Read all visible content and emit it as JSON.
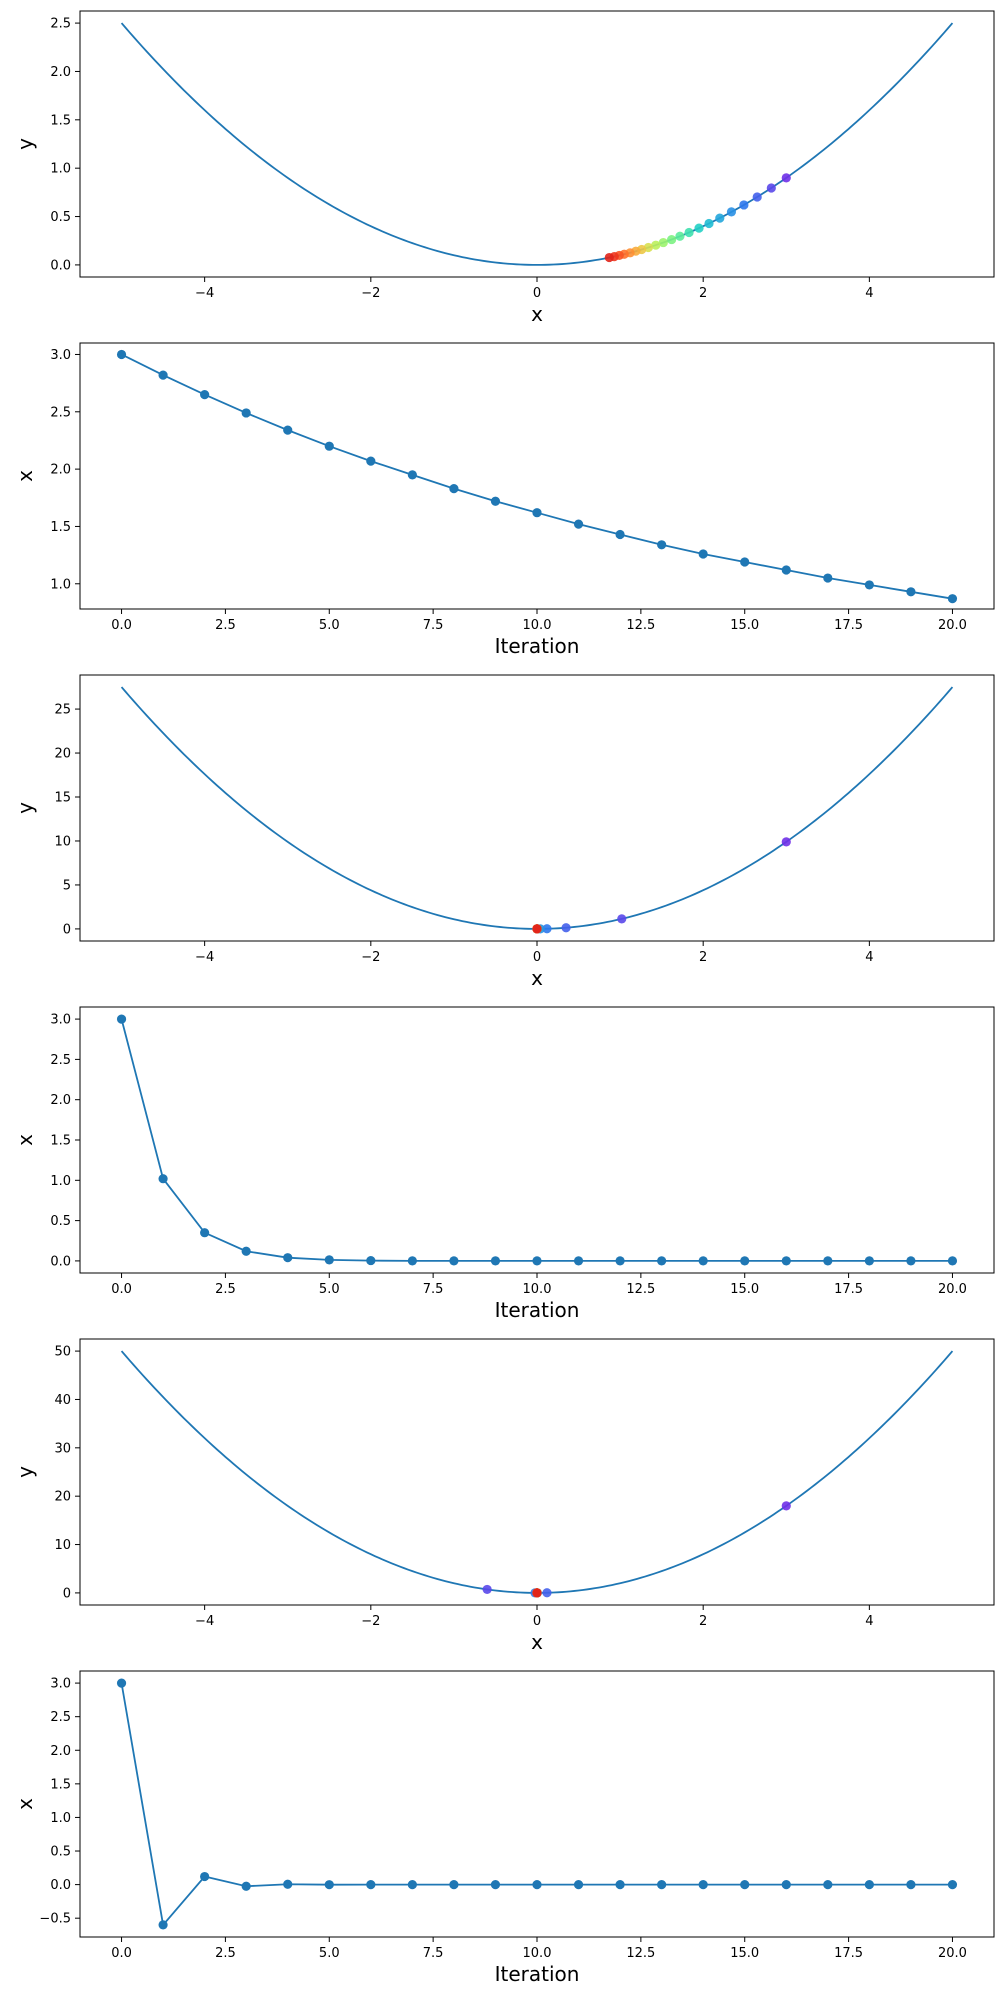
{
  "chart_data": [
    {
      "type": "line",
      "title": "",
      "xlabel": "x",
      "ylabel": "y",
      "xlim": [
        -5.5,
        5.5
      ],
      "ylim": [
        -0.125,
        2.625
      ],
      "xticks": [
        -4,
        -2,
        0,
        2,
        4
      ],
      "xtick_labels": [
        "−4",
        "−2",
        "0",
        "2",
        "4"
      ],
      "yticks": [
        0.0,
        0.5,
        1.0,
        1.5,
        2.0,
        2.5
      ],
      "ytick_labels": [
        "0.0",
        "0.5",
        "1.0",
        "1.5",
        "2.0",
        "2.5"
      ],
      "curve": {
        "x": [
          -5,
          -4.5,
          -4,
          -3.5,
          -3,
          -2.5,
          -2,
          -1.5,
          -1,
          -0.5,
          0,
          0.5,
          1,
          1.5,
          2,
          2.5,
          3,
          3.5,
          4,
          4.5,
          5
        ],
        "y": [
          2.5,
          2.025,
          1.6,
          1.225,
          0.9,
          0.625,
          0.4,
          0.225,
          0.1,
          0.025,
          0,
          0.025,
          0.1,
          0.225,
          0.4,
          0.625,
          0.9,
          1.225,
          1.6,
          2.025,
          2.5
        ]
      },
      "points": {
        "x": [
          3.0,
          2.82,
          2.65,
          2.49,
          2.34,
          2.2,
          2.07,
          1.95,
          1.83,
          1.72,
          1.62,
          1.52,
          1.43,
          1.34,
          1.26,
          1.19,
          1.12,
          1.05,
          0.99,
          0.93,
          0.87
        ],
        "y": [
          0.9,
          0.795,
          0.702,
          0.62,
          0.548,
          0.484,
          0.428,
          0.38,
          0.335,
          0.296,
          0.262,
          0.231,
          0.204,
          0.18,
          0.159,
          0.142,
          0.125,
          0.11,
          0.098,
          0.086,
          0.076
        ],
        "colors": [
          "#7030e8",
          "#5a48ea",
          "#4460eb",
          "#2e78ec",
          "#2990e4",
          "#24a6dc",
          "#20bcd3",
          "#22d0c4",
          "#3ee0ae",
          "#5cec9a",
          "#7cf283",
          "#9cf46e",
          "#bcf05c",
          "#d8e050",
          "#ecc846",
          "#f8ac3c",
          "#fd8f33",
          "#ff722b",
          "#f85424",
          "#ee361e",
          "#e0241a"
        ]
      },
      "grid": false,
      "legend": "none"
    },
    {
      "type": "line",
      "title": "",
      "xlabel": "Iteration",
      "ylabel": "x",
      "xlim": [
        -1.0,
        21.0
      ],
      "ylim": [
        0.78,
        3.1
      ],
      "xticks": [
        0,
        2.5,
        5,
        7.5,
        10,
        12.5,
        15,
        17.5,
        20
      ],
      "xtick_labels": [
        "0.0",
        "2.5",
        "5.0",
        "7.5",
        "10.0",
        "12.5",
        "15.0",
        "17.5",
        "20.0"
      ],
      "yticks": [
        1.0,
        1.5,
        2.0,
        2.5,
        3.0
      ],
      "ytick_labels": [
        "1.0",
        "1.5",
        "2.0",
        "2.5",
        "3.0"
      ],
      "series": [
        {
          "x": [
            0,
            1,
            2,
            3,
            4,
            5,
            6,
            7,
            8,
            9,
            10,
            11,
            12,
            13,
            14,
            15,
            16,
            17,
            18,
            19,
            20
          ],
          "values": [
            3.0,
            2.82,
            2.65,
            2.49,
            2.34,
            2.2,
            2.07,
            1.95,
            1.83,
            1.72,
            1.62,
            1.52,
            1.43,
            1.34,
            1.26,
            1.19,
            1.12,
            1.05,
            0.99,
            0.93,
            0.87
          ]
        }
      ],
      "grid": false,
      "legend": "none"
    },
    {
      "type": "line",
      "title": "",
      "xlabel": "x",
      "ylabel": "y",
      "xlim": [
        -5.5,
        5.5
      ],
      "ylim": [
        -1.375,
        28.875
      ],
      "xticks": [
        -4,
        -2,
        0,
        2,
        4
      ],
      "xtick_labels": [
        "−4",
        "−2",
        "0",
        "2",
        "4"
      ],
      "yticks": [
        0,
        5,
        10,
        15,
        20,
        25
      ],
      "ytick_labels": [
        "0",
        "5",
        "10",
        "15",
        "20",
        "25"
      ],
      "curve": {
        "x": [
          -5,
          -4.5,
          -4,
          -3.5,
          -3,
          -2.5,
          -2,
          -1.5,
          -1,
          -0.5,
          0,
          0.5,
          1,
          1.5,
          2,
          2.5,
          3,
          3.5,
          4,
          4.5,
          5
        ],
        "y": [
          27.5,
          22.275,
          17.6,
          13.475,
          9.9,
          6.875,
          4.4,
          2.475,
          1.1,
          0.275,
          0,
          0.275,
          1.1,
          2.475,
          4.4,
          6.875,
          9.9,
          13.475,
          17.6,
          22.275,
          27.5
        ]
      },
      "points": {
        "x": [
          3.0,
          1.02,
          0.35,
          0.12,
          0.04,
          0.013,
          0.004,
          0.0,
          0.0,
          0.0,
          0.0,
          0.0,
          0.0,
          0.0,
          0.0,
          0.0,
          0.0,
          0.0,
          0.0,
          0.0,
          0.0
        ],
        "y": [
          9.9,
          1.14,
          0.135,
          0.016,
          0.002,
          0.0,
          0.0,
          0.0,
          0.0,
          0.0,
          0.0,
          0.0,
          0.0,
          0.0,
          0.0,
          0.0,
          0.0,
          0.0,
          0.0,
          0.0,
          0.0
        ],
        "colors": [
          "#7030e8",
          "#5a48ea",
          "#4460eb",
          "#2e78ec",
          "#2990e4",
          "#24a6dc",
          "#20bcd3",
          "#22d0c4",
          "#3ee0ae",
          "#5cec9a",
          "#7cf283",
          "#9cf46e",
          "#bcf05c",
          "#d8e050",
          "#ecc846",
          "#f8ac3c",
          "#fd8f33",
          "#ff722b",
          "#f85424",
          "#ee361e",
          "#e0241a"
        ]
      },
      "grid": false,
      "legend": "none"
    },
    {
      "type": "line",
      "title": "",
      "xlabel": "Iteration",
      "ylabel": "x",
      "xlim": [
        -1.0,
        21.0
      ],
      "ylim": [
        -0.15,
        3.15
      ],
      "xticks": [
        0,
        2.5,
        5,
        7.5,
        10,
        12.5,
        15,
        17.5,
        20
      ],
      "xtick_labels": [
        "0.0",
        "2.5",
        "5.0",
        "7.5",
        "10.0",
        "12.5",
        "15.0",
        "17.5",
        "20.0"
      ],
      "yticks": [
        0.0,
        0.5,
        1.0,
        1.5,
        2.0,
        2.5,
        3.0
      ],
      "ytick_labels": [
        "0.0",
        "0.5",
        "1.0",
        "1.5",
        "2.0",
        "2.5",
        "3.0"
      ],
      "series": [
        {
          "x": [
            0,
            1,
            2,
            3,
            4,
            5,
            6,
            7,
            8,
            9,
            10,
            11,
            12,
            13,
            14,
            15,
            16,
            17,
            18,
            19,
            20
          ],
          "values": [
            3.0,
            1.02,
            0.35,
            0.12,
            0.04,
            0.013,
            0.004,
            0.0,
            0.0,
            0.0,
            0.0,
            0.0,
            0.0,
            0.0,
            0.0,
            0.0,
            0.0,
            0.0,
            0.0,
            0.0,
            0.0
          ]
        }
      ],
      "grid": false,
      "legend": "none"
    },
    {
      "type": "line",
      "title": "",
      "xlabel": "x",
      "ylabel": "y",
      "xlim": [
        -5.5,
        5.5
      ],
      "ylim": [
        -2.5,
        52.5
      ],
      "xticks": [
        -4,
        -2,
        0,
        2,
        4
      ],
      "xtick_labels": [
        "−4",
        "−2",
        "0",
        "2",
        "4"
      ],
      "yticks": [
        0,
        10,
        20,
        30,
        40,
        50
      ],
      "ytick_labels": [
        "0",
        "10",
        "20",
        "30",
        "40",
        "50"
      ],
      "curve": {
        "x": [
          -5,
          -4.5,
          -4,
          -3.5,
          -3,
          -2.5,
          -2,
          -1.5,
          -1,
          -0.5,
          0,
          0.5,
          1,
          1.5,
          2,
          2.5,
          3,
          3.5,
          4,
          4.5,
          5
        ],
        "y": [
          50,
          40.5,
          32,
          24.5,
          18,
          12.5,
          8,
          4.5,
          2,
          0.5,
          0,
          0.5,
          2,
          4.5,
          8,
          12.5,
          18,
          24.5,
          32,
          40.5,
          50
        ]
      },
      "points": {
        "x": [
          3.0,
          -0.6,
          0.12,
          -0.024,
          0.005,
          -0.001,
          0.0,
          0.0,
          0.0,
          0.0,
          0.0,
          0.0,
          0.0,
          0.0,
          0.0,
          0.0,
          0.0,
          0.0,
          0.0,
          0.0,
          0.0
        ],
        "y": [
          18.0,
          0.72,
          0.029,
          0.001,
          0.0,
          0.0,
          0.0,
          0.0,
          0.0,
          0.0,
          0.0,
          0.0,
          0.0,
          0.0,
          0.0,
          0.0,
          0.0,
          0.0,
          0.0,
          0.0,
          0.0
        ],
        "colors": [
          "#7030e8",
          "#5a48ea",
          "#4460eb",
          "#2e78ec",
          "#2990e4",
          "#24a6dc",
          "#20bcd3",
          "#22d0c4",
          "#3ee0ae",
          "#5cec9a",
          "#7cf283",
          "#9cf46e",
          "#bcf05c",
          "#d8e050",
          "#ecc846",
          "#f8ac3c",
          "#fd8f33",
          "#ff722b",
          "#f85424",
          "#ee361e",
          "#e0241a"
        ]
      },
      "grid": false,
      "legend": "none"
    },
    {
      "type": "line",
      "title": "",
      "xlabel": "Iteration",
      "ylabel": "x",
      "xlim": [
        -1.0,
        21.0
      ],
      "ylim": [
        -0.78,
        3.18
      ],
      "xticks": [
        0,
        2.5,
        5,
        7.5,
        10,
        12.5,
        15,
        17.5,
        20
      ],
      "xtick_labels": [
        "0.0",
        "2.5",
        "5.0",
        "7.5",
        "10.0",
        "12.5",
        "15.0",
        "17.5",
        "20.0"
      ],
      "yticks": [
        -0.5,
        0.0,
        0.5,
        1.0,
        1.5,
        2.0,
        2.5,
        3.0
      ],
      "ytick_labels": [
        "−0.5",
        "0.0",
        "0.5",
        "1.0",
        "1.5",
        "2.0",
        "2.5",
        "3.0"
      ],
      "series": [
        {
          "x": [
            0,
            1,
            2,
            3,
            4,
            5,
            6,
            7,
            8,
            9,
            10,
            11,
            12,
            13,
            14,
            15,
            16,
            17,
            18,
            19,
            20
          ],
          "values": [
            3.0,
            -0.6,
            0.12,
            -0.024,
            0.005,
            -0.001,
            0.0,
            0.0,
            0.0,
            0.0,
            0.0,
            0.0,
            0.0,
            0.0,
            0.0,
            0.0,
            0.0,
            0.0,
            0.0,
            0.0,
            0.0
          ]
        }
      ],
      "grid": false,
      "legend": "none"
    }
  ],
  "colors": {
    "line": "#1f77b4",
    "marker": "#1f77b4",
    "axes": "#000000",
    "background": "#ffffff"
  }
}
